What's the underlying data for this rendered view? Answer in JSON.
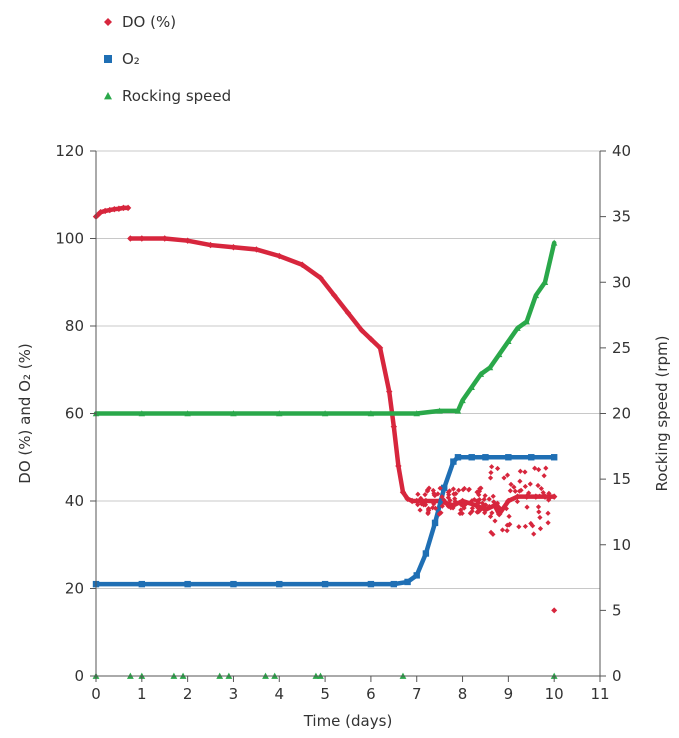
{
  "chart_data": {
    "type": "scatter",
    "xlabel": "Time (days)",
    "ylabel": "DO (%) and O₂ (%)",
    "y2label": "Rocking speed (rpm)",
    "xlim": [
      0,
      11
    ],
    "ylim": [
      0,
      120
    ],
    "y2lim": [
      0,
      40
    ],
    "xticks": [
      0,
      1,
      2,
      3,
      4,
      5,
      6,
      7,
      8,
      9,
      10,
      11
    ],
    "yticks": [
      0,
      20,
      40,
      60,
      80,
      100,
      120
    ],
    "y2ticks": [
      0,
      5,
      10,
      15,
      20,
      25,
      30,
      35,
      40
    ],
    "grid": "horizontal",
    "legend_position": "top-left",
    "series": [
      {
        "name": "DO (%)",
        "marker": "diamond",
        "color": "#d7263d",
        "axis": "left",
        "x": [
          0,
          0.05,
          0.1,
          0.2,
          0.3,
          0.4,
          0.5,
          0.6,
          0.7,
          0.75,
          1.0,
          1.5,
          2.0,
          2.5,
          3.0,
          3.5,
          4.0,
          4.5,
          4.9,
          5.2,
          5.5,
          5.8,
          6.0,
          6.2,
          6.4,
          6.5,
          6.6,
          6.7,
          6.8,
          6.9,
          7.0,
          7.2,
          7.5,
          7.8,
          8.0,
          8.3,
          8.5,
          8.7,
          8.8,
          9.0,
          9.2,
          9.4,
          9.6,
          9.8,
          10.0
        ],
        "y": [
          105,
          105.5,
          106,
          106.3,
          106.5,
          106.7,
          106.8,
          107,
          107,
          100,
          100,
          100,
          99.5,
          98.5,
          98,
          97.5,
          96,
          94,
          91,
          87,
          83,
          79,
          77,
          75,
          65,
          57,
          48,
          42,
          40.5,
          40,
          40,
          40,
          40,
          39,
          40,
          39,
          38,
          39,
          37,
          40,
          41,
          41,
          41,
          41,
          41
        ]
      },
      {
        "name": "O₂",
        "marker": "square",
        "color": "#1f6fb4",
        "axis": "left",
        "x": [
          0,
          1,
          2,
          3,
          4,
          5,
          6,
          6.5,
          6.8,
          7.0,
          7.2,
          7.4,
          7.6,
          7.8,
          7.9,
          8.2,
          8.5,
          9.0,
          9.5,
          10.0
        ],
        "y": [
          21,
          21,
          21,
          21,
          21,
          21,
          21,
          21,
          21.5,
          23,
          28,
          35,
          43,
          49,
          50,
          50,
          50,
          50,
          50,
          50
        ]
      },
      {
        "name": "Rocking speed",
        "marker": "triangle",
        "color": "#2aa84a",
        "axis": "right",
        "x": [
          0,
          1,
          2,
          3,
          4,
          5,
          6,
          7,
          7.5,
          7.9,
          8.0,
          8.2,
          8.4,
          8.6,
          8.8,
          9.0,
          9.2,
          9.4,
          9.6,
          9.8,
          10.0
        ],
        "y": [
          20,
          20,
          20,
          20,
          20,
          20,
          20,
          20,
          20.2,
          20.2,
          21,
          22,
          23,
          23.5,
          24.5,
          25.5,
          26.5,
          27,
          29,
          30,
          33
        ]
      }
    ],
    "zero_markers_rocking_x": [
      0,
      0.75,
      1.0,
      1.7,
      1.9,
      2.7,
      2.9,
      3.7,
      3.9,
      4.8,
      4.9,
      6.7,
      10.0
    ],
    "outlier_do": {
      "x": 10.0,
      "y": 15
    }
  }
}
